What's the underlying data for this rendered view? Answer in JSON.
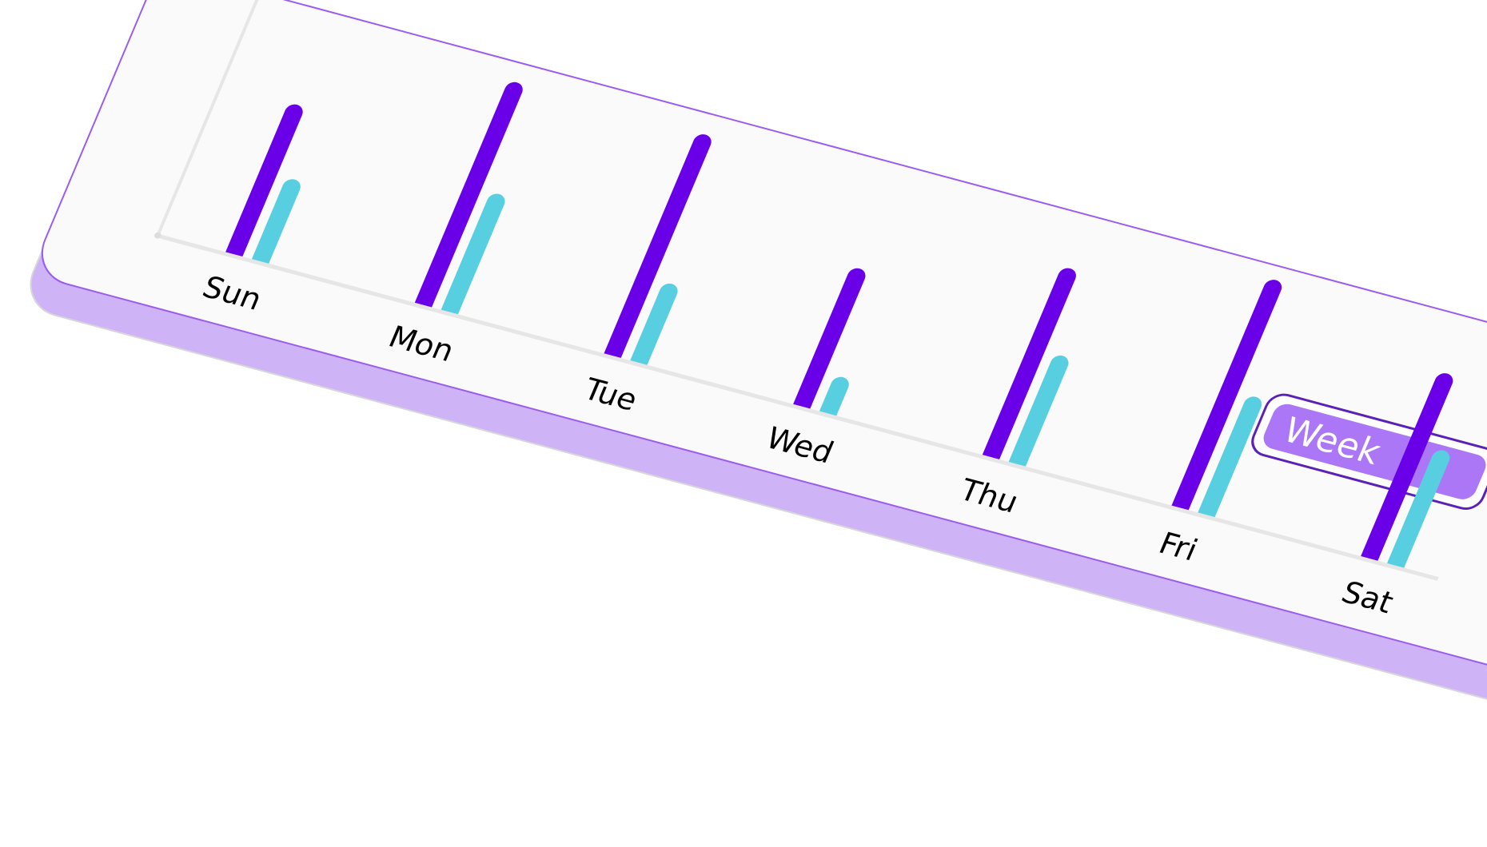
{
  "chart_data": {
    "type": "bar",
    "categories": [
      "Sun",
      "Mon",
      "Tue",
      "Wed",
      "Thu",
      "Fri",
      "Sat"
    ],
    "series": [
      {
        "values": [
          228,
          340,
          338,
          210,
          288,
          348,
          282
        ],
        "color": "#6a00e8"
      },
      {
        "values": [
          125,
          180,
          120,
          55,
          165,
          180,
          175
        ],
        "color": "#57cfe0"
      }
    ],
    "ylim": [
      0,
      360
    ],
    "grid": false,
    "axis_color": "#e6e6e6"
  },
  "toggle": {
    "label": "Week"
  },
  "colors": {
    "card": "#fafafa",
    "card_border": "#9a5cf0",
    "card_shadow": "#cfb3f7",
    "toggle": "#ac77f6"
  }
}
